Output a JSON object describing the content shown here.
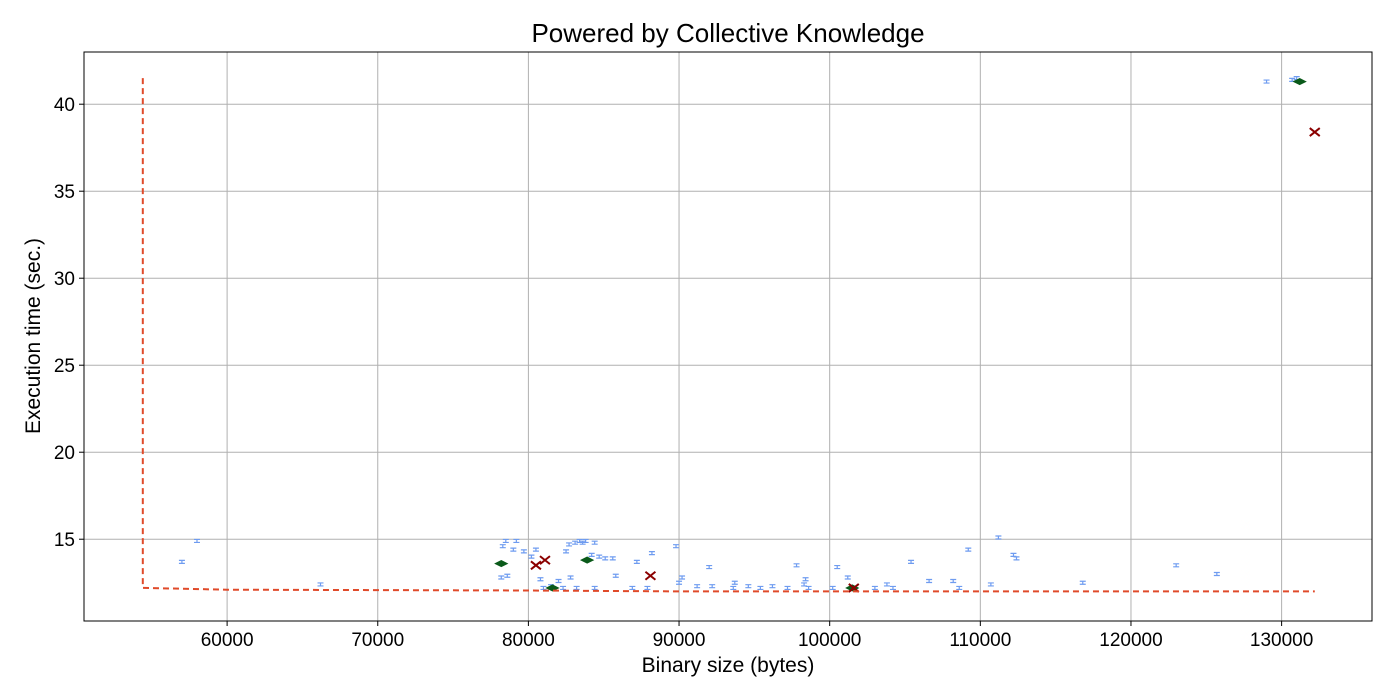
{
  "chart_data": {
    "type": "scatter",
    "title": "Powered by Collective Knowledge",
    "xlabel": "Binary size (bytes)",
    "ylabel": "Execution time (sec.)",
    "xlim": [
      50500,
      136000
    ],
    "ylim": [
      10.3,
      43.0
    ],
    "xticks": [
      60000,
      70000,
      80000,
      90000,
      100000,
      110000,
      120000,
      130000
    ],
    "yticks": [
      15,
      20,
      25,
      30,
      35,
      40
    ],
    "grid": true,
    "legend": "none",
    "colors": {
      "points": "#6f9cf0",
      "pareto": "#0a5a1a",
      "marked": "#8b0000",
      "frontier": "#e04a2a"
    },
    "series": [
      {
        "marker": "errorbar",
        "points": [
          {
            "x": 57000,
            "y": 13.7
          },
          {
            "x": 58000,
            "y": 14.9
          },
          {
            "x": 66200,
            "y": 12.4
          },
          {
            "x": 78300,
            "y": 14.6
          },
          {
            "x": 78500,
            "y": 14.9
          },
          {
            "x": 78200,
            "y": 12.8
          },
          {
            "x": 78600,
            "y": 12.9
          },
          {
            "x": 79200,
            "y": 14.9
          },
          {
            "x": 79000,
            "y": 14.4
          },
          {
            "x": 79700,
            "y": 14.3
          },
          {
            "x": 80500,
            "y": 14.4
          },
          {
            "x": 80200,
            "y": 14.0
          },
          {
            "x": 80800,
            "y": 12.7
          },
          {
            "x": 81000,
            "y": 12.2
          },
          {
            "x": 81500,
            "y": 12.3
          },
          {
            "x": 82000,
            "y": 12.6
          },
          {
            "x": 82700,
            "y": 14.7
          },
          {
            "x": 82500,
            "y": 14.3
          },
          {
            "x": 83100,
            "y": 14.8
          },
          {
            "x": 83400,
            "y": 14.9
          },
          {
            "x": 83600,
            "y": 14.8
          },
          {
            "x": 83800,
            "y": 14.9
          },
          {
            "x": 84400,
            "y": 14.8
          },
          {
            "x": 84200,
            "y": 14.1
          },
          {
            "x": 84700,
            "y": 14.0
          },
          {
            "x": 85100,
            "y": 13.9
          },
          {
            "x": 85600,
            "y": 13.9
          },
          {
            "x": 85800,
            "y": 12.9
          },
          {
            "x": 82800,
            "y": 12.8
          },
          {
            "x": 82300,
            "y": 12.2
          },
          {
            "x": 83200,
            "y": 12.2
          },
          {
            "x": 84400,
            "y": 12.2
          },
          {
            "x": 86900,
            "y": 12.2
          },
          {
            "x": 87200,
            "y": 13.7
          },
          {
            "x": 88200,
            "y": 14.2
          },
          {
            "x": 87900,
            "y": 12.2
          },
          {
            "x": 89800,
            "y": 14.6
          },
          {
            "x": 90200,
            "y": 12.8
          },
          {
            "x": 90000,
            "y": 12.5
          },
          {
            "x": 91200,
            "y": 12.3
          },
          {
            "x": 92000,
            "y": 13.4
          },
          {
            "x": 92200,
            "y": 12.3
          },
          {
            "x": 93600,
            "y": 12.2
          },
          {
            "x": 93700,
            "y": 12.5
          },
          {
            "x": 94600,
            "y": 12.3
          },
          {
            "x": 95400,
            "y": 12.2
          },
          {
            "x": 96200,
            "y": 12.3
          },
          {
            "x": 97200,
            "y": 12.2
          },
          {
            "x": 97800,
            "y": 13.5
          },
          {
            "x": 98400,
            "y": 12.7
          },
          {
            "x": 98300,
            "y": 12.4
          },
          {
            "x": 98600,
            "y": 12.2
          },
          {
            "x": 100500,
            "y": 13.4
          },
          {
            "x": 100200,
            "y": 12.2
          },
          {
            "x": 101200,
            "y": 12.8
          },
          {
            "x": 103000,
            "y": 12.2
          },
          {
            "x": 103800,
            "y": 12.4
          },
          {
            "x": 104200,
            "y": 12.2
          },
          {
            "x": 105400,
            "y": 13.7
          },
          {
            "x": 106600,
            "y": 12.6
          },
          {
            "x": 108200,
            "y": 12.6
          },
          {
            "x": 108600,
            "y": 12.2
          },
          {
            "x": 109200,
            "y": 14.4
          },
          {
            "x": 110700,
            "y": 12.4
          },
          {
            "x": 111200,
            "y": 15.1
          },
          {
            "x": 112200,
            "y": 14.1
          },
          {
            "x": 112400,
            "y": 13.9
          },
          {
            "x": 116800,
            "y": 12.5
          },
          {
            "x": 123000,
            "y": 13.5
          },
          {
            "x": 125700,
            "y": 13.0
          },
          {
            "x": 129000,
            "y": 41.3
          },
          {
            "x": 130700,
            "y": 41.4
          },
          {
            "x": 131000,
            "y": 41.5
          }
        ]
      },
      {
        "marker": "diamond",
        "points": [
          {
            "x": 78200,
            "y": 13.6
          },
          {
            "x": 81600,
            "y": 12.2
          },
          {
            "x": 83900,
            "y": 13.8
          },
          {
            "x": 101500,
            "y": 12.2
          },
          {
            "x": 131200,
            "y": 41.3
          }
        ]
      },
      {
        "marker": "x",
        "points": [
          {
            "x": 80500,
            "y": 13.5
          },
          {
            "x": 81100,
            "y": 13.8
          },
          {
            "x": 88100,
            "y": 12.9
          },
          {
            "x": 101600,
            "y": 12.2
          },
          {
            "x": 132200,
            "y": 38.4
          }
        ]
      },
      {
        "marker": "frontier-line",
        "points": [
          {
            "x": 54400,
            "y": 41.5
          },
          {
            "x": 54400,
            "y": 12.2
          },
          {
            "x": 60000,
            "y": 12.1
          },
          {
            "x": 80000,
            "y": 12.05
          },
          {
            "x": 90000,
            "y": 12.0
          },
          {
            "x": 100000,
            "y": 12.0
          },
          {
            "x": 132200,
            "y": 12.0
          }
        ]
      }
    ]
  }
}
